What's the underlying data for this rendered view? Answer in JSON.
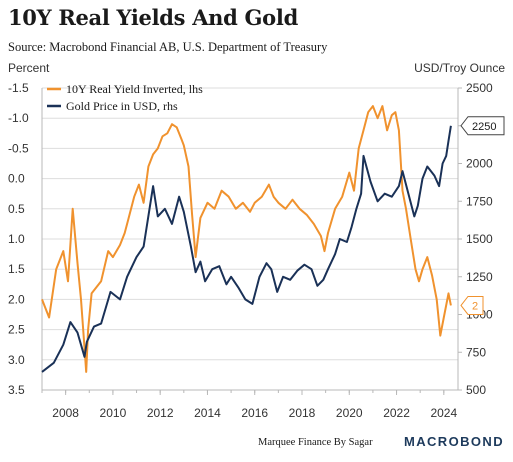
{
  "title": "10Y Real Yields And Gold",
  "subtitle": "Source: Macrobond Financial AB, U.S. Department of Treasury",
  "footer": {
    "credit": "Marquee Finance By Sagar",
    "brand": "MACROBOND"
  },
  "colors": {
    "real_yield": "#f0922e",
    "gold": "#1a3157",
    "grid": "#dddddd",
    "axis": "#b8b8b8"
  },
  "chart_data": {
    "type": "line",
    "left_axis": {
      "title": "Percent",
      "inverted": true,
      "range": [
        -1.5,
        3.5
      ],
      "ticks": [
        "-1.5",
        "-1.0",
        "-0.5",
        "0.0",
        "0.5",
        "1.0",
        "1.5",
        "2.0",
        "2.5",
        "3.0",
        "3.5"
      ]
    },
    "right_axis": {
      "title": "USD/Troy Ounce",
      "range": [
        500,
        2500
      ],
      "ticks": [
        "2500",
        "2250",
        "2000",
        "1750",
        "1500",
        "1250",
        "1000",
        "750",
        "500"
      ]
    },
    "x_axis": {
      "range": [
        2007,
        2024.6
      ],
      "ticks": [
        "2008",
        "2010",
        "2012",
        "2014",
        "2016",
        "2018",
        "2020",
        "2022",
        "2024"
      ]
    },
    "grid": true,
    "legend": {
      "placement": "top-left"
    },
    "series": [
      {
        "name": "10Y Real Yield Inverted, lhs",
        "axis": "left",
        "end_label": "2",
        "x": [
          2007.0,
          2007.3,
          2007.6,
          2007.9,
          2008.1,
          2008.3,
          2008.5,
          2008.65,
          2008.8,
          2008.87,
          2008.95,
          2009.1,
          2009.3,
          2009.5,
          2009.8,
          2010.0,
          2010.3,
          2010.5,
          2010.7,
          2010.9,
          2011.1,
          2011.3,
          2011.5,
          2011.7,
          2011.9,
          2012.1,
          2012.3,
          2012.5,
          2012.7,
          2012.9,
          2013.0,
          2013.2,
          2013.35,
          2013.5,
          2013.7,
          2014.0,
          2014.3,
          2014.6,
          2014.9,
          2015.2,
          2015.5,
          2015.8,
          2016.0,
          2016.3,
          2016.6,
          2016.8,
          2017.0,
          2017.3,
          2017.6,
          2017.9,
          2018.2,
          2018.5,
          2018.8,
          2018.95,
          2019.1,
          2019.4,
          2019.7,
          2020.0,
          2020.2,
          2020.4,
          2020.6,
          2020.8,
          2021.0,
          2021.2,
          2021.4,
          2021.6,
          2021.8,
          2021.95,
          2022.1,
          2022.25,
          2022.4,
          2022.6,
          2022.8,
          2022.95,
          2023.1,
          2023.3,
          2023.5,
          2023.7,
          2023.85,
          2024.0,
          2024.2,
          2024.3
        ],
        "y": [
          2.0,
          2.3,
          1.5,
          1.2,
          1.7,
          0.5,
          1.4,
          2.0,
          2.8,
          3.2,
          2.5,
          1.9,
          1.8,
          1.7,
          1.2,
          1.3,
          1.1,
          0.9,
          0.6,
          0.3,
          0.1,
          0.4,
          -0.2,
          -0.4,
          -0.5,
          -0.7,
          -0.75,
          -0.9,
          -0.85,
          -0.65,
          -0.55,
          -0.2,
          0.6,
          1.3,
          0.65,
          0.4,
          0.5,
          0.2,
          0.3,
          0.5,
          0.4,
          0.55,
          0.4,
          0.3,
          0.1,
          0.3,
          0.4,
          0.5,
          0.35,
          0.5,
          0.6,
          0.75,
          0.95,
          1.2,
          0.9,
          0.5,
          0.3,
          -0.1,
          0.2,
          -0.5,
          -0.8,
          -1.1,
          -1.2,
          -1.0,
          -1.2,
          -0.8,
          -1.05,
          -1.1,
          -0.8,
          0.2,
          0.5,
          1.0,
          1.5,
          1.7,
          1.5,
          1.3,
          1.6,
          2.0,
          2.6,
          2.3,
          1.9,
          2.1
        ]
      },
      {
        "name": "Gold Price in USD, rhs",
        "axis": "right",
        "end_label": "2250",
        "x": [
          2007.0,
          2007.5,
          2007.9,
          2008.2,
          2008.5,
          2008.8,
          2008.9,
          2009.2,
          2009.5,
          2009.9,
          2010.3,
          2010.6,
          2011.0,
          2011.3,
          2011.6,
          2011.7,
          2011.9,
          2012.2,
          2012.5,
          2012.8,
          2013.0,
          2013.3,
          2013.5,
          2013.7,
          2013.9,
          2014.2,
          2014.5,
          2014.8,
          2015.0,
          2015.3,
          2015.6,
          2015.9,
          2016.2,
          2016.5,
          2016.7,
          2016.95,
          2017.2,
          2017.5,
          2017.8,
          2018.1,
          2018.4,
          2018.65,
          2018.9,
          2019.1,
          2019.4,
          2019.6,
          2019.9,
          2020.1,
          2020.3,
          2020.5,
          2020.6,
          2020.9,
          2021.2,
          2021.5,
          2021.8,
          2022.1,
          2022.25,
          2022.5,
          2022.75,
          2022.9,
          2023.1,
          2023.3,
          2023.6,
          2023.8,
          2023.95,
          2024.1,
          2024.2,
          2024.3
        ],
        "y": [
          620,
          680,
          800,
          950,
          880,
          720,
          820,
          920,
          940,
          1150,
          1100,
          1250,
          1380,
          1450,
          1750,
          1850,
          1650,
          1700,
          1600,
          1780,
          1680,
          1450,
          1280,
          1350,
          1220,
          1300,
          1320,
          1200,
          1250,
          1180,
          1100,
          1070,
          1250,
          1340,
          1300,
          1150,
          1250,
          1230,
          1290,
          1330,
          1300,
          1190,
          1230,
          1300,
          1400,
          1500,
          1480,
          1580,
          1700,
          1800,
          2050,
          1880,
          1750,
          1800,
          1780,
          1850,
          1950,
          1800,
          1650,
          1720,
          1900,
          1980,
          1920,
          1850,
          2000,
          2050,
          2150,
          2250
        ]
      }
    ]
  }
}
